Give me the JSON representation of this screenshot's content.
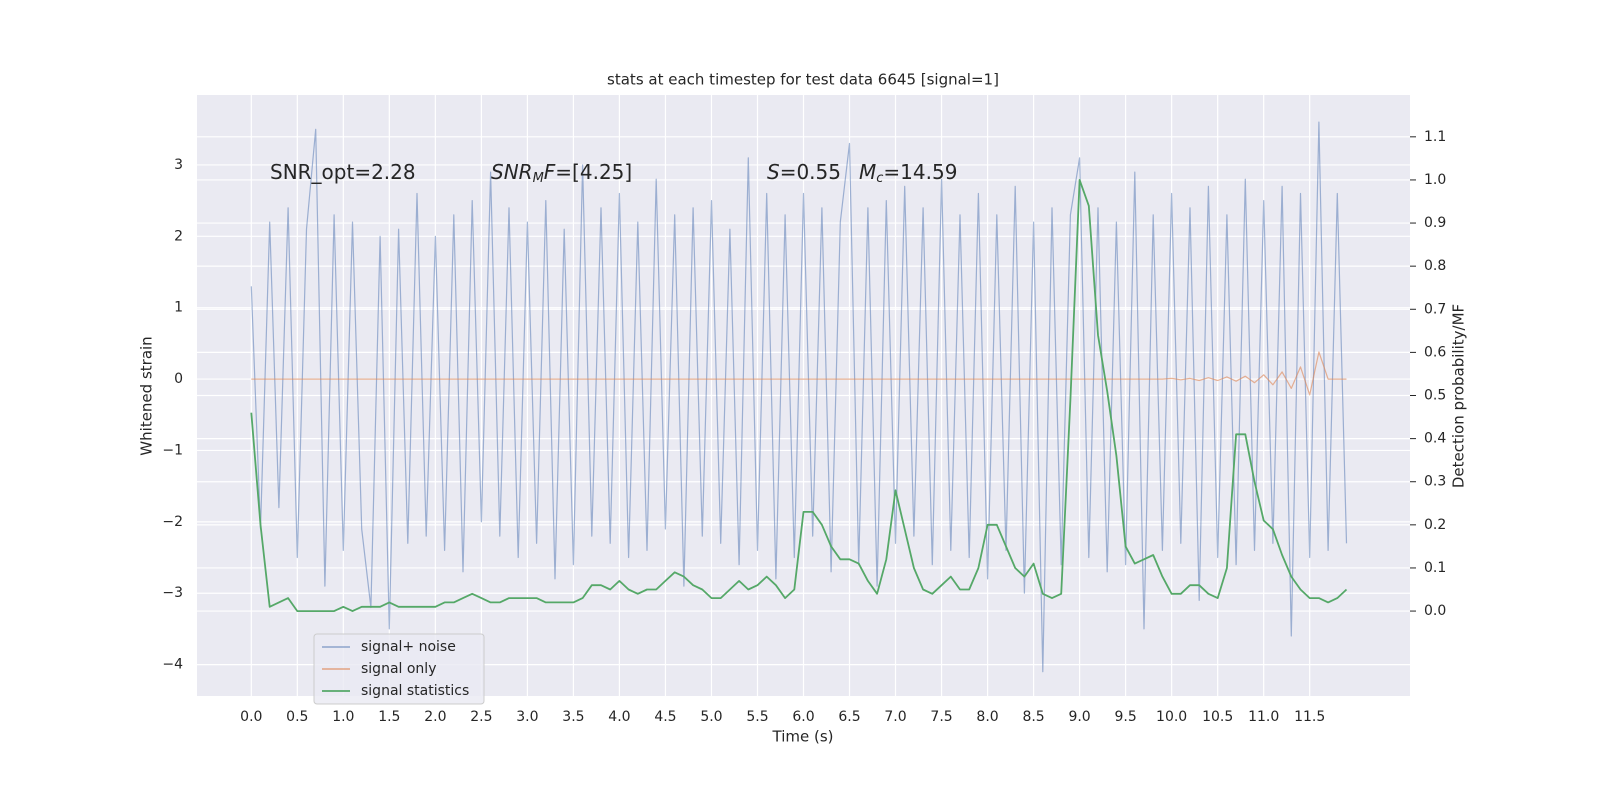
{
  "chart_data": {
    "type": "line",
    "title": "stats at each timestep for test data 6645 [signal=1]",
    "xlabel": "Time (s)",
    "ylabel": "Whitened strain",
    "y2label": "Detection probability/MF",
    "grid": true,
    "legend": "lower left",
    "annotations": [
      {
        "parts": [
          {
            "text": "SNR_opt=2.28",
            "style": "normal"
          }
        ]
      },
      {
        "parts": [
          {
            "text": "SNR",
            "style": "italic"
          },
          {
            "text": "M",
            "style": "sub"
          },
          {
            "text": "F",
            "style": "italic"
          },
          {
            "text": "=[4.25]",
            "style": "normal"
          }
        ]
      },
      {
        "parts": [
          {
            "text": "S",
            "style": "italic"
          },
          {
            "text": "=0.55",
            "style": "normal"
          }
        ]
      },
      {
        "parts": [
          {
            "text": "M",
            "style": "italic"
          },
          {
            "text": "c",
            "style": "sub"
          },
          {
            "text": "=14.59",
            "style": "normal"
          }
        ]
      }
    ],
    "xlim": [
      -0.59,
      12.59
    ],
    "ylim": [
      -4.44,
      3.98
    ],
    "y2lim": [
      -0.197,
      1.197
    ],
    "xticks": [
      {
        "value": 0,
        "label": "0.0"
      },
      0.5,
      {
        "value": 1,
        "label": "1.0"
      },
      1.5,
      {
        "value": 2,
        "label": "2.0"
      },
      2.5,
      {
        "value": 3,
        "label": "3.0"
      },
      3.5,
      {
        "value": 4,
        "label": "4.0"
      },
      4.5,
      {
        "value": 5,
        "label": "5.0"
      },
      5.5,
      {
        "value": 6,
        "label": "6.0"
      },
      6.5,
      {
        "value": 7,
        "label": "7.0"
      },
      7.5,
      {
        "value": 8,
        "label": "8.0"
      },
      8.5,
      {
        "value": 9,
        "label": "9.0"
      },
      9.5,
      {
        "value": 10,
        "label": "10.0"
      },
      10.5,
      {
        "value": 11,
        "label": "11.0"
      },
      11.5
    ],
    "yticks": [
      {
        "value": -4,
        "label": "−4"
      },
      {
        "value": -3,
        "label": "−3"
      },
      {
        "value": -2,
        "label": "−2"
      },
      {
        "value": -1,
        "label": "−1"
      },
      0,
      1,
      2,
      3
    ],
    "y2ticks": [
      {
        "value": 0,
        "label": "0.0"
      },
      0.1,
      0.2,
      0.3,
      0.4,
      0.5,
      0.6,
      0.7,
      0.8,
      0.9,
      {
        "value": 1,
        "label": "1.0"
      },
      1.1
    ],
    "x": [
      0,
      0.1,
      0.2,
      0.3,
      0.4,
      0.5,
      0.6,
      0.7,
      0.8,
      0.9,
      1,
      1.1,
      1.2,
      1.3,
      1.4,
      1.5,
      1.6,
      1.7,
      1.8,
      1.9,
      2,
      2.1,
      2.2,
      2.3,
      2.4,
      2.5,
      2.6,
      2.7,
      2.8,
      2.9,
      3,
      3.1,
      3.2,
      3.3,
      3.4,
      3.5,
      3.6,
      3.7,
      3.8,
      3.9,
      4,
      4.1,
      4.2,
      4.3,
      4.4,
      4.5,
      4.6,
      4.7,
      4.8,
      4.9,
      5,
      5.1,
      5.2,
      5.3,
      5.4,
      5.5,
      5.6,
      5.7,
      5.8,
      5.9,
      6,
      6.1,
      6.2,
      6.3,
      6.4,
      6.5,
      6.6,
      6.7,
      6.8,
      6.9,
      7,
      7.1,
      7.2,
      7.3,
      7.4,
      7.5,
      7.6,
      7.7,
      7.8,
      7.9,
      8,
      8.1,
      8.2,
      8.3,
      8.4,
      8.5,
      8.6,
      8.7,
      8.8,
      8.9,
      9,
      9.1,
      9.2,
      9.3,
      9.4,
      9.5,
      9.6,
      9.7,
      9.8,
      9.9,
      10,
      10.1,
      10.2,
      10.3,
      10.4,
      10.5,
      10.6,
      10.7,
      10.8,
      10.9,
      11,
      11.1,
      11.2,
      11.3,
      11.4,
      11.5,
      11.6,
      11.7,
      11.8,
      11.9
    ],
    "series": [
      {
        "name": "signal+ noise",
        "color": "#4c72b0",
        "opacity": 0.5,
        "values": [
          1.3,
          -2.1,
          2.2,
          -1.8,
          2.4,
          -2.5,
          2.1,
          3.5,
          -2.9,
          2.3,
          -2.4,
          2.2,
          -2.1,
          -3.2,
          2.0,
          -3.5,
          2.1,
          -2.3,
          2.6,
          -2.2,
          2.0,
          -2.4,
          2.3,
          -2.7,
          2.5,
          -2.0,
          2.9,
          -2.2,
          2.4,
          -2.5,
          2.2,
          -2.3,
          2.5,
          -2.8,
          2.1,
          -2.6,
          3.0,
          -2.2,
          2.4,
          -2.3,
          2.6,
          -2.5,
          2.2,
          -2.4,
          2.8,
          -2.1,
          2.3,
          -2.9,
          2.4,
          -2.2,
          2.5,
          -2.3,
          2.1,
          -2.6,
          3.1,
          -2.4,
          2.6,
          -2.8,
          2.3,
          -2.5,
          2.6,
          -2.2,
          2.4,
          -2.7,
          2.2,
          3.3,
          -2.6,
          2.4,
          -2.9,
          2.5,
          -2.3,
          2.7,
          -2.2,
          2.4,
          -2.6,
          2.8,
          -2.4,
          2.3,
          -2.5,
          2.6,
          -2.8,
          2.3,
          -2.4,
          2.7,
          -3.0,
          2.2,
          -4.1,
          2.4,
          -2.6,
          2.3,
          3.1,
          -2.5,
          2.4,
          -2.7,
          2.2,
          -2.6,
          2.9,
          -3.5,
          2.3,
          -2.4,
          2.6,
          -2.3,
          2.4,
          -3.1,
          2.7,
          -2.5,
          2.3,
          -2.6,
          2.8,
          -2.4,
          2.5,
          -2.3,
          2.7,
          -3.6,
          2.6,
          -2.5,
          3.6,
          -2.4,
          2.6,
          -2.3
        ]
      },
      {
        "name": "signal only",
        "color": "#dd8452",
        "opacity": 0.6,
        "values": [
          0,
          0,
          0,
          0,
          0,
          0,
          0,
          0,
          0,
          0,
          0,
          0,
          0,
          0,
          0,
          0,
          0,
          0,
          0,
          0,
          0,
          0,
          0,
          0,
          0,
          0,
          0,
          0,
          0,
          0,
          0,
          0,
          0,
          0,
          0,
          0,
          0,
          0,
          0,
          0,
          0,
          0,
          0,
          0,
          0,
          0,
          0,
          0,
          0,
          0,
          0,
          0,
          0,
          0,
          0,
          0,
          0,
          0,
          0,
          0,
          0,
          0,
          0,
          0,
          0,
          0,
          0,
          0,
          0,
          0,
          0,
          0,
          0,
          0,
          0,
          0,
          0,
          0,
          0,
          0,
          0,
          0,
          0,
          0,
          0,
          0,
          0,
          0,
          0,
          0,
          0,
          0,
          0,
          0,
          0,
          0,
          0,
          0,
          0,
          0,
          0.01,
          -0.01,
          0.01,
          -0.02,
          0.02,
          -0.02,
          0.03,
          -0.03,
          0.04,
          -0.05,
          0.06,
          -0.08,
          0.1,
          -0.13,
          0.17,
          -0.22,
          0.38,
          0,
          0,
          0
        ]
      },
      {
        "name": "signal statistics",
        "color": "#55a868",
        "opacity": 1,
        "axis": "y2",
        "values": [
          0.46,
          0.2,
          0.01,
          0.02,
          0.03,
          0,
          0,
          0,
          0,
          0,
          0.01,
          0,
          0.01,
          0.01,
          0.01,
          0.02,
          0.01,
          0.01,
          0.01,
          0.01,
          0.01,
          0.02,
          0.02,
          0.03,
          0.04,
          0.03,
          0.02,
          0.02,
          0.03,
          0.03,
          0.03,
          0.03,
          0.02,
          0.02,
          0.02,
          0.02,
          0.03,
          0.06,
          0.06,
          0.05,
          0.07,
          0.05,
          0.04,
          0.05,
          0.05,
          0.07,
          0.09,
          0.08,
          0.06,
          0.05,
          0.03,
          0.03,
          0.05,
          0.07,
          0.05,
          0.06,
          0.08,
          0.06,
          0.03,
          0.05,
          0.23,
          0.23,
          0.2,
          0.15,
          0.12,
          0.12,
          0.11,
          0.07,
          0.04,
          0.12,
          0.28,
          0.19,
          0.1,
          0.05,
          0.04,
          0.06,
          0.08,
          0.05,
          0.05,
          0.1,
          0.2,
          0.2,
          0.15,
          0.1,
          0.08,
          0.11,
          0.04,
          0.03,
          0.04,
          0.49,
          1,
          0.94,
          0.64,
          0.51,
          0.36,
          0.15,
          0.11,
          0.12,
          0.13,
          0.08,
          0.04,
          0.04,
          0.06,
          0.06,
          0.04,
          0.03,
          0.1,
          0.41,
          0.41,
          0.3,
          0.21,
          0.19,
          0.13,
          0.08,
          0.05,
          0.03,
          0.03,
          0.02,
          0.03,
          0.05
        ]
      }
    ]
  }
}
